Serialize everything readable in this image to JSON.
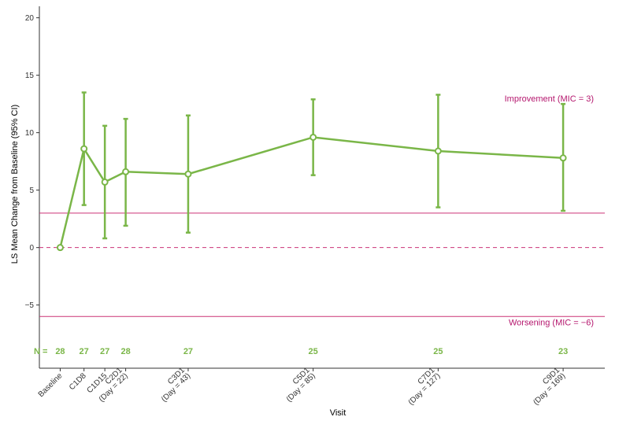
{
  "chart_data": {
    "type": "line",
    "xlabel": "Visit",
    "ylabel": "LS Mean Change from Baseline (95% CI)",
    "ylim": [
      -10.5,
      21
    ],
    "yticks": [
      -5,
      0,
      5,
      10,
      15,
      20
    ],
    "ytick_labels": [
      "−5",
      "0",
      "5",
      "10",
      "15",
      "20"
    ],
    "grid": false,
    "x_days": [
      0,
      8,
      15,
      22,
      43,
      85,
      127,
      169
    ],
    "xlim_days": [
      -7,
      183
    ],
    "categories": [
      [
        "Baseline"
      ],
      [
        "C1D8"
      ],
      [
        "C1D15"
      ],
      [
        "C2D1",
        "(Day = 22)"
      ],
      [
        "C3D1",
        "(Day = 43)"
      ],
      [
        "C5D1",
        "(Day = 85)"
      ],
      [
        "C7D1",
        "(Day = 127)"
      ],
      [
        "C9D1",
        "(Day = 169)"
      ]
    ],
    "series": [
      {
        "values": [
          0,
          8.6,
          5.7,
          6.6,
          6.4,
          9.6,
          8.4,
          7.8
        ],
        "ci_lower": [
          0,
          3.7,
          0.8,
          1.9,
          1.3,
          6.3,
          3.5,
          3.2
        ],
        "ci_upper": [
          0,
          13.5,
          10.6,
          11.2,
          11.5,
          12.9,
          13.3,
          12.5
        ],
        "color": "#7ab648"
      }
    ],
    "reference_lines": [
      {
        "y": 3,
        "label": "Improvement (MIC = 3)",
        "style": "solid",
        "color": "#cc3377",
        "label_color": "#b5176e"
      },
      {
        "y": 0,
        "label": "",
        "style": "dashed",
        "color": "#cc3377"
      },
      {
        "y": -6,
        "label": "Worsening (MIC = −6)",
        "style": "solid",
        "color": "#cc3377",
        "label_color": "#b5176e"
      }
    ],
    "n_label": "N =",
    "n_values": [
      "28",
      "27",
      "27",
      "28",
      "27",
      "25",
      "25",
      "23"
    ],
    "n_color": "#7ab648"
  }
}
